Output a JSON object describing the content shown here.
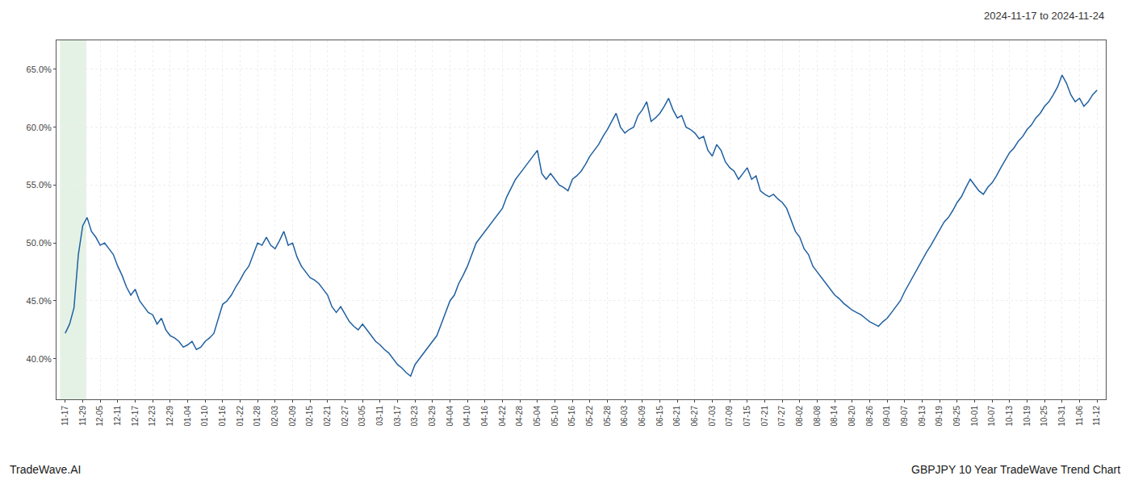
{
  "chart_data": {
    "type": "line",
    "annotations": [
      "2024-11-17 to 2024-11-24",
      "TradeWave.AI",
      "GBPJPY 10 Year TradeWave Trend Chart"
    ],
    "color": "#2060a0",
    "grid": true,
    "shade": {
      "from": "11-17",
      "to": "11-29",
      "color": "#d8edda"
    },
    "ylim": [
      0.365,
      0.675
    ],
    "yticks": [
      {
        "value": 0.4,
        "label": "40.0%"
      },
      {
        "value": 0.45,
        "label": "45.0%"
      },
      {
        "value": 0.5,
        "label": "50.0%"
      },
      {
        "value": 0.55,
        "label": "55.0%"
      },
      {
        "value": 0.6,
        "label": "60.0%"
      },
      {
        "value": 0.65,
        "label": "65.0%"
      }
    ],
    "categories": [
      "11-17",
      null,
      null,
      null,
      "11-29",
      null,
      null,
      null,
      "12-05",
      null,
      null,
      null,
      "12-11",
      null,
      null,
      null,
      "12-17",
      null,
      null,
      null,
      "12-23",
      null,
      null,
      null,
      "12-29",
      null,
      null,
      null,
      "01-04",
      null,
      null,
      null,
      "01-10",
      null,
      null,
      null,
      "01-16",
      null,
      null,
      null,
      "01-22",
      null,
      null,
      null,
      "01-28",
      null,
      null,
      null,
      "02-03",
      null,
      null,
      null,
      "02-09",
      null,
      null,
      null,
      "02-15",
      null,
      null,
      null,
      "02-21",
      null,
      null,
      null,
      "02-27",
      null,
      null,
      null,
      "03-05",
      null,
      null,
      null,
      "03-11",
      null,
      null,
      null,
      "03-17",
      null,
      null,
      null,
      "03-23",
      null,
      null,
      null,
      "03-29",
      null,
      null,
      null,
      "04-04",
      null,
      null,
      null,
      "04-10",
      null,
      null,
      null,
      "04-16",
      null,
      null,
      null,
      "04-22",
      null,
      null,
      null,
      "04-28",
      null,
      null,
      null,
      "05-04",
      null,
      null,
      null,
      "05-10",
      null,
      null,
      null,
      "05-16",
      null,
      null,
      null,
      "05-22",
      null,
      null,
      null,
      "05-28",
      null,
      null,
      null,
      "06-03",
      null,
      null,
      null,
      "06-09",
      null,
      null,
      null,
      "06-15",
      null,
      null,
      null,
      "06-21",
      null,
      null,
      null,
      "06-27",
      null,
      null,
      null,
      "07-03",
      null,
      null,
      null,
      "07-09",
      null,
      null,
      null,
      "07-15",
      null,
      null,
      null,
      "07-21",
      null,
      null,
      null,
      "07-27",
      null,
      null,
      null,
      "08-02",
      null,
      null,
      null,
      "08-08",
      null,
      null,
      null,
      "08-14",
      null,
      null,
      null,
      "08-20",
      null,
      null,
      null,
      "08-26",
      null,
      null,
      null,
      "09-01",
      null,
      null,
      null,
      "09-07",
      null,
      null,
      null,
      "09-13",
      null,
      null,
      null,
      "09-19",
      null,
      null,
      null,
      "09-25",
      null,
      null,
      null,
      "10-01",
      null,
      null,
      null,
      "10-07",
      null,
      null,
      null,
      "10-13",
      null,
      null,
      null,
      "10-19",
      null,
      null,
      null,
      "10-25",
      null,
      null,
      null,
      "10-31",
      null,
      null,
      null,
      "11-06",
      null,
      null,
      null,
      "11-12"
    ],
    "values": [
      0.422,
      0.43,
      0.444,
      0.49,
      0.515,
      0.522,
      0.51,
      0.505,
      0.498,
      0.5,
      0.495,
      0.49,
      0.48,
      0.472,
      0.462,
      0.455,
      0.46,
      0.45,
      0.445,
      0.44,
      0.438,
      0.43,
      0.435,
      0.425,
      0.42,
      0.418,
      0.415,
      0.41,
      0.412,
      0.415,
      0.408,
      0.41,
      0.415,
      0.418,
      0.422,
      0.435,
      0.447,
      0.45,
      0.455,
      0.462,
      0.468,
      0.475,
      0.48,
      0.49,
      0.5,
      0.498,
      0.505,
      0.498,
      0.495,
      0.502,
      0.51,
      0.498,
      0.5,
      0.488,
      0.48,
      0.475,
      0.47,
      0.468,
      0.465,
      0.46,
      0.455,
      0.445,
      0.44,
      0.445,
      0.438,
      0.432,
      0.428,
      0.425,
      0.43,
      0.425,
      0.42,
      0.415,
      0.412,
      0.408,
      0.405,
      0.4,
      0.395,
      0.392,
      0.388,
      0.385,
      0.395,
      0.4,
      0.405,
      0.41,
      0.415,
      0.42,
      0.43,
      0.44,
      0.45,
      0.455,
      0.465,
      0.472,
      0.48,
      0.49,
      0.5,
      0.505,
      0.51,
      0.515,
      0.52,
      0.525,
      0.53,
      0.54,
      0.548,
      0.555,
      0.56,
      0.565,
      0.57,
      0.575,
      0.58,
      0.56,
      0.555,
      0.56,
      0.555,
      0.55,
      0.548,
      0.545,
      0.555,
      0.558,
      0.562,
      0.568,
      0.575,
      0.58,
      0.585,
      0.592,
      0.598,
      0.605,
      0.612,
      0.6,
      0.595,
      0.598,
      0.6,
      0.61,
      0.615,
      0.622,
      0.605,
      0.608,
      0.612,
      0.618,
      0.625,
      0.615,
      0.608,
      0.61,
      0.6,
      0.598,
      0.595,
      0.59,
      0.592,
      0.58,
      0.575,
      0.585,
      0.58,
      0.57,
      0.565,
      0.562,
      0.555,
      0.56,
      0.565,
      0.555,
      0.558,
      0.545,
      0.542,
      0.54,
      0.542,
      0.538,
      0.535,
      0.53,
      0.52,
      0.51,
      0.505,
      0.495,
      0.49,
      0.48,
      0.475,
      0.47,
      0.465,
      0.46,
      0.455,
      0.452,
      0.448,
      0.445,
      0.442,
      0.44,
      0.438,
      0.435,
      0.432,
      0.43,
      0.428,
      0.432,
      0.435,
      0.44,
      0.445,
      0.45,
      0.458,
      0.465,
      0.472,
      0.478,
      0.485,
      0.492,
      0.498,
      0.505,
      0.512,
      0.518,
      0.522,
      0.528,
      0.535,
      0.54,
      0.548,
      0.555,
      0.55,
      0.545,
      0.542,
      0.548,
      0.552,
      0.558,
      0.565,
      0.572,
      0.578,
      0.582,
      0.588,
      0.592,
      0.598,
      0.602,
      0.608,
      0.612,
      0.618,
      0.622,
      0.628,
      0.635,
      0.645,
      0.638,
      0.628,
      0.622,
      0.625,
      0.618,
      0.622,
      0.628,
      0.632
    ]
  }
}
